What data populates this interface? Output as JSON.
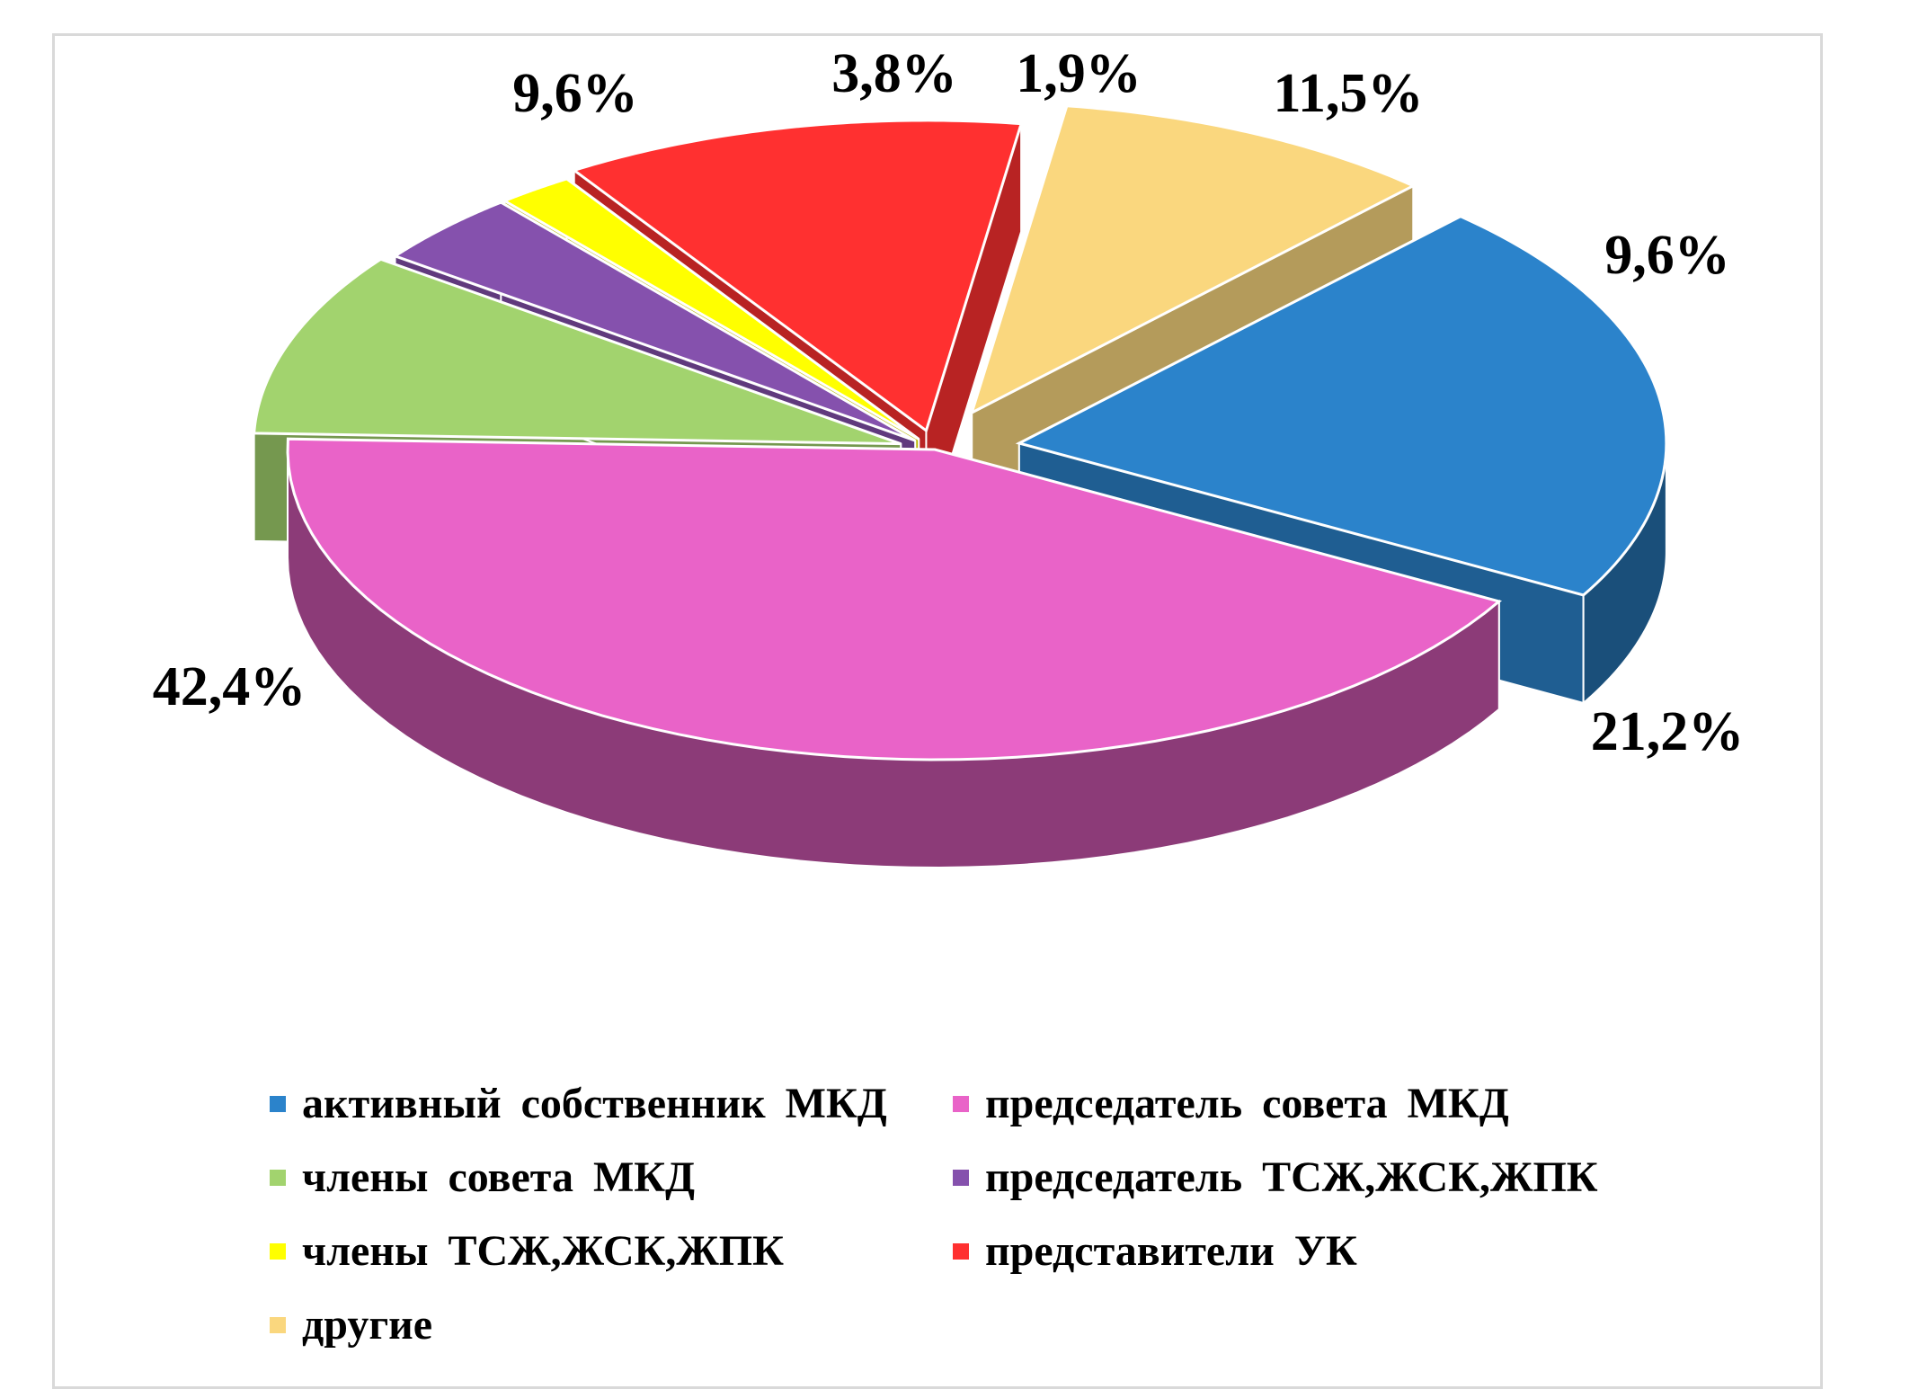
{
  "chart_data": {
    "type": "pie",
    "style": "3d-exploded",
    "title": "",
    "categories": [
      "активный собственник МКД",
      "председатель совета МКД",
      "члены совета МКД",
      "председатель ТСЖ,ЖСК,ЖПК",
      "члены ТСЖ,ЖСК,ЖПК",
      "представители УК",
      "другие"
    ],
    "values": [
      21.2,
      42.4,
      9.6,
      3.8,
      1.9,
      11.5,
      9.6
    ],
    "data_labels": [
      "21,2%",
      "42,4%",
      "9,6%",
      "3,8%",
      "1,9%",
      "11,5%",
      "9,6%"
    ],
    "colors": [
      "#2b83cb",
      "#e963c8",
      "#a2d36e",
      "#8551ad",
      "#ffff00",
      "#ff3030",
      "#fad77e"
    ],
    "legend_position": "bottom"
  }
}
